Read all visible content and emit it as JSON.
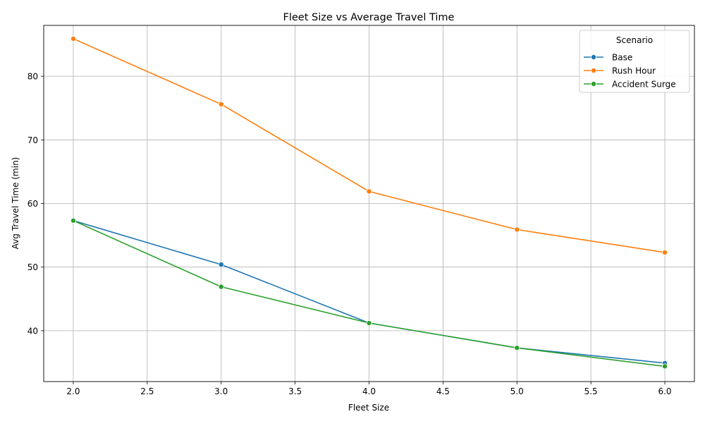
{
  "chart_data": {
    "type": "line",
    "title": "Fleet Size vs Average Travel Time",
    "xlabel": "Fleet Size",
    "ylabel": "Avg Travel Time (min)",
    "xlim": [
      1.8,
      6.2
    ],
    "ylim": [
      32.0,
      88.0
    ],
    "x_ticks": [
      "2.0",
      "2.5",
      "3.0",
      "3.5",
      "4.0",
      "4.5",
      "5.0",
      "5.5",
      "6.0"
    ],
    "y_ticks": [
      "40",
      "50",
      "60",
      "70",
      "80"
    ],
    "grid": true,
    "legend": {
      "title": "Scenario",
      "placement": "top-right"
    },
    "x": [
      2,
      3,
      4,
      5,
      6
    ],
    "series": [
      {
        "name": "Base",
        "color": "#1f77b4",
        "values": [
          57.3,
          50.4,
          41.2,
          37.3,
          34.9
        ]
      },
      {
        "name": "Rush Hour",
        "color": "#ff7f0e",
        "values": [
          85.9,
          75.6,
          61.9,
          55.9,
          52.3
        ]
      },
      {
        "name": "Accident Surge",
        "color": "#2ca02c",
        "values": [
          57.3,
          46.9,
          41.2,
          37.3,
          34.4
        ]
      }
    ]
  }
}
